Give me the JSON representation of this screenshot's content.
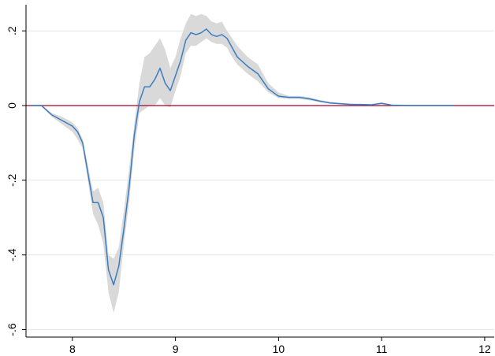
{
  "chart_data": {
    "type": "line",
    "title": "",
    "xlabel": "",
    "ylabel": "",
    "xlim": [
      7.55,
      12.1
    ],
    "ylim": [
      -0.62,
      0.27
    ],
    "x_ticks": [
      {
        "value": 8,
        "label": "8"
      },
      {
        "value": 9,
        "label": "9"
      },
      {
        "value": 10,
        "label": "10"
      },
      {
        "value": 11,
        "label": "11"
      },
      {
        "value": 12,
        "label": "12"
      }
    ],
    "y_ticks": [
      {
        "value": -0.6,
        "label": "-.6"
      },
      {
        "value": -0.4,
        "label": "-.4"
      },
      {
        "value": -0.2,
        "label": "-.2"
      },
      {
        "value": 0,
        "label": "0"
      },
      {
        "value": 0.2,
        "label": ".2"
      }
    ],
    "grid": {
      "horizontal": true,
      "vertical": false
    },
    "reference_line": {
      "y": 0,
      "color": "#b0173a"
    },
    "series": [
      {
        "color": "#3a7cc0",
        "band_color": "#d9d9d9",
        "points": [
          [
            7.6,
            0.0,
            -0.001,
            0.001
          ],
          [
            7.7,
            0.0,
            -0.002,
            0.002
          ],
          [
            7.8,
            -0.025,
            -0.03,
            -0.02
          ],
          [
            7.9,
            -0.04,
            -0.05,
            -0.03
          ],
          [
            8.0,
            -0.055,
            -0.07,
            -0.045
          ],
          [
            8.05,
            -0.07,
            -0.09,
            -0.06
          ],
          [
            8.1,
            -0.1,
            -0.115,
            -0.09
          ],
          [
            8.15,
            -0.18,
            -0.2,
            -0.16
          ],
          [
            8.2,
            -0.26,
            -0.29,
            -0.23
          ],
          [
            8.25,
            -0.26,
            -0.32,
            -0.22
          ],
          [
            8.3,
            -0.3,
            -0.37,
            -0.26
          ],
          [
            8.35,
            -0.44,
            -0.5,
            -0.4
          ],
          [
            8.4,
            -0.48,
            -0.555,
            -0.41
          ],
          [
            8.45,
            -0.43,
            -0.5,
            -0.38
          ],
          [
            8.5,
            -0.33,
            -0.37,
            -0.28
          ],
          [
            8.55,
            -0.22,
            -0.26,
            -0.17
          ],
          [
            8.6,
            -0.08,
            -0.12,
            -0.05
          ],
          [
            8.65,
            0.01,
            -0.02,
            0.06
          ],
          [
            8.7,
            0.05,
            -0.01,
            0.13
          ],
          [
            8.75,
            0.05,
            0.0,
            0.14
          ],
          [
            8.8,
            0.07,
            0.0,
            0.16
          ],
          [
            8.85,
            0.1,
            0.02,
            0.18
          ],
          [
            8.9,
            0.06,
            0.0,
            0.15
          ],
          [
            8.95,
            0.04,
            -0.005,
            0.1
          ],
          [
            9.0,
            0.08,
            0.04,
            0.13
          ],
          [
            9.05,
            0.12,
            0.08,
            0.18
          ],
          [
            9.1,
            0.175,
            0.14,
            0.22
          ],
          [
            9.15,
            0.195,
            0.16,
            0.245
          ],
          [
            9.2,
            0.19,
            0.16,
            0.24
          ],
          [
            9.25,
            0.195,
            0.17,
            0.245
          ],
          [
            9.3,
            0.205,
            0.18,
            0.24
          ],
          [
            9.35,
            0.19,
            0.17,
            0.225
          ],
          [
            9.4,
            0.185,
            0.165,
            0.22
          ],
          [
            9.45,
            0.19,
            0.165,
            0.225
          ],
          [
            9.5,
            0.18,
            0.155,
            0.2
          ],
          [
            9.55,
            0.155,
            0.13,
            0.18
          ],
          [
            9.6,
            0.13,
            0.11,
            0.16
          ],
          [
            9.7,
            0.105,
            0.085,
            0.13
          ],
          [
            9.8,
            0.085,
            0.065,
            0.11
          ],
          [
            9.9,
            0.045,
            0.035,
            0.06
          ],
          [
            10.0,
            0.025,
            0.02,
            0.035
          ],
          [
            10.1,
            0.022,
            0.018,
            0.026
          ],
          [
            10.2,
            0.022,
            0.018,
            0.026
          ],
          [
            10.3,
            0.018,
            0.014,
            0.022
          ],
          [
            10.4,
            0.012,
            0.009,
            0.015
          ],
          [
            10.5,
            0.007,
            0.005,
            0.01
          ],
          [
            10.6,
            0.005,
            0.003,
            0.007
          ],
          [
            10.7,
            0.003,
            0.002,
            0.005
          ],
          [
            10.8,
            0.003,
            0.002,
            0.004
          ],
          [
            10.9,
            0.002,
            0.001,
            0.004
          ],
          [
            11.0,
            0.006,
            0.003,
            0.009
          ],
          [
            11.1,
            0.001,
            0.0,
            0.002
          ],
          [
            11.3,
            0.0,
            -0.001,
            0.001
          ],
          [
            11.5,
            0.0,
            -0.001,
            0.001
          ],
          [
            11.7,
            0.0,
            -0.001,
            0.001
          ]
        ]
      }
    ]
  }
}
